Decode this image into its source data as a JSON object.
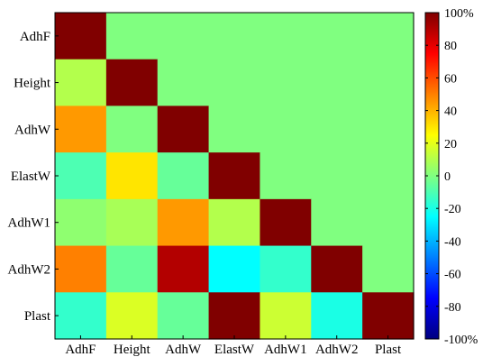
{
  "chart_data": {
    "type": "heatmap",
    "title": "",
    "xlabel": "",
    "ylabel": "",
    "rows": [
      "AdhF",
      "Height",
      "AdhW",
      "ElastW",
      "AdhW1",
      "AdhW2",
      "Plast"
    ],
    "columns": [
      "AdhF",
      "Height",
      "AdhW",
      "ElastW",
      "AdhW1",
      "AdhW2",
      "Plast"
    ],
    "values": [
      [
        100,
        0,
        0,
        0,
        0,
        0,
        0
      ],
      [
        10,
        100,
        0,
        0,
        0,
        0,
        0
      ],
      [
        45,
        0,
        100,
        0,
        0,
        0,
        0
      ],
      [
        -10,
        30,
        -5,
        100,
        0,
        0,
        0
      ],
      [
        3,
        8,
        45,
        10,
        100,
        0,
        0
      ],
      [
        50,
        -5,
        90,
        -25,
        -15,
        100,
        0
      ],
      [
        -15,
        18,
        -5,
        100,
        15,
        -20,
        100
      ]
    ],
    "colorbar": {
      "range": [
        -100,
        100
      ],
      "tick_values": [
        100,
        80,
        60,
        40,
        20,
        0,
        -20,
        -40,
        -60,
        -80,
        -100
      ],
      "tick_labels": [
        "100%",
        "80",
        "60",
        "40",
        "20",
        "0",
        "-20",
        "-40",
        "-60",
        "-80",
        "-100%"
      ],
      "colormap": "jet"
    },
    "grid": false,
    "legend": "colorbar-right"
  }
}
